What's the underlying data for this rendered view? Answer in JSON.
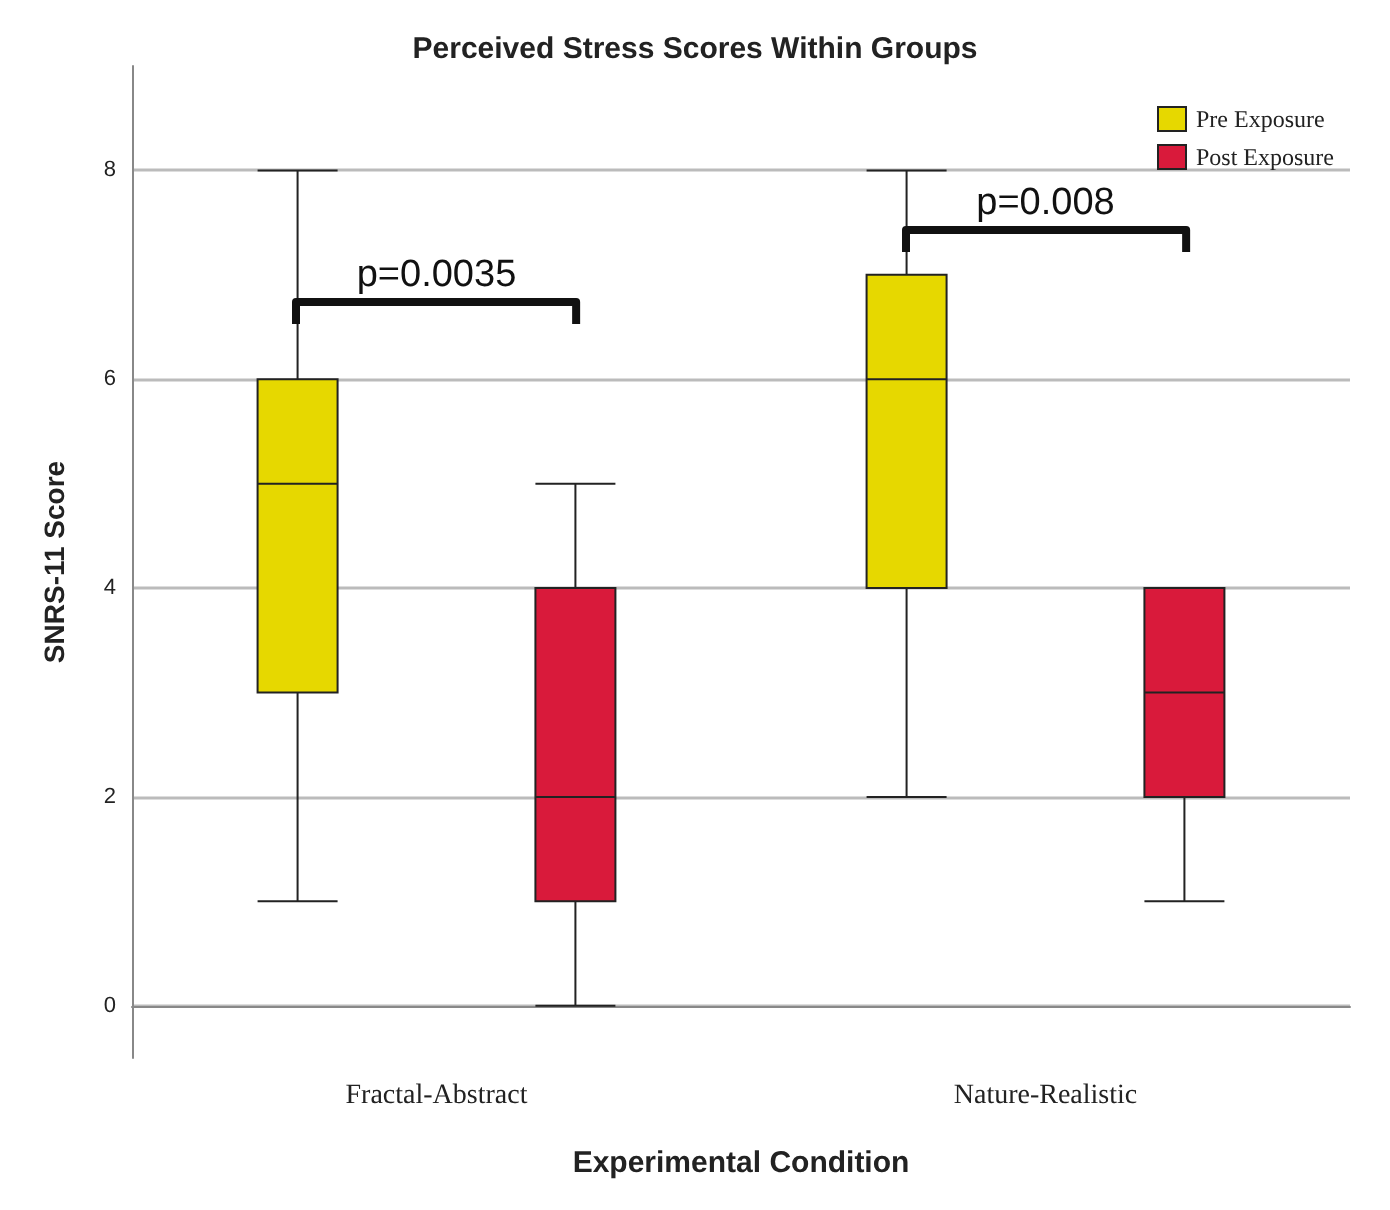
{
  "chart_data": {
    "type": "box",
    "title": "Perceived Stress Scores Within Groups",
    "xlabel": "Experimental Condition",
    "ylabel": "SNRS-11 Score",
    "categories": [
      "Fractal-Abstract",
      "Nature-Realistic"
    ],
    "series": [
      {
        "name": "Pre Exposure",
        "color": "#e6d800",
        "boxes": [
          {
            "low": 1,
            "q1": 3,
            "median": 5,
            "q3": 6,
            "high": 8
          },
          {
            "low": 2,
            "q1": 4,
            "median": 6,
            "q3": 7,
            "high": 8
          }
        ]
      },
      {
        "name": "Post Exposure",
        "color": "#d91a3b",
        "boxes": [
          {
            "low": 0,
            "q1": 1,
            "median": 2,
            "q3": 4,
            "high": 5
          },
          {
            "low": 1,
            "q1": 2,
            "median": 3,
            "q3": 4,
            "high": 4
          }
        ]
      }
    ],
    "ylim": [
      -0.5,
      9
    ],
    "yticks": [
      0,
      2,
      4,
      6,
      8
    ],
    "grid": "y",
    "legend": "top right",
    "annotations": [
      "p=0.0035",
      "p=0.008"
    ]
  }
}
